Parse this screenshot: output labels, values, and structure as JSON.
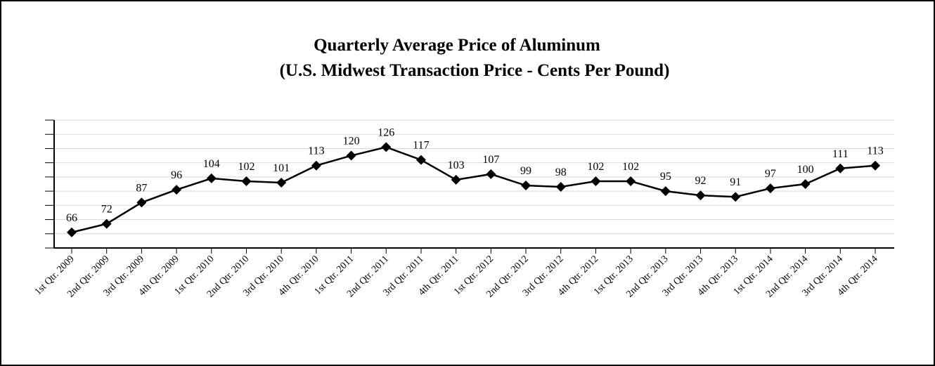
{
  "chart_data": {
    "type": "line",
    "title": "Quarterly Average Price of Aluminum",
    "subtitle": "(U.S. Midwest Transaction Price - Cents Per Pound)",
    "categories": [
      "1st Qtr. 2009",
      "2nd Qtr. 2009",
      "3rd Qtr. 2009",
      "4th Qtr. 2009",
      "1st Qtr. 2010",
      "2nd Qtr. 2010",
      "3rd Qtr. 2010",
      "4th Qtr. 2010",
      "1st Qtr. 2011",
      "2nd Qtr. 2011",
      "3rd Qtr. 2011",
      "4th Qtr. 2011",
      "1st Qtr. 2012",
      "2nd Qtr. 2012",
      "3rd Qtr. 2012",
      "4th Qtr. 2012",
      "1st Qtr. 2013",
      "2nd Qtr. 2013",
      "3rd Qtr. 2013",
      "4th Qtr. 2013",
      "1st Qtr. 2014",
      "2nd Qtr. 2014",
      "3rd Qtr. 2014",
      "4th Qtr. 2014"
    ],
    "values": [
      66,
      72,
      87,
      96,
      104,
      102,
      101,
      113,
      120,
      126,
      117,
      103,
      107,
      99,
      98,
      102,
      102,
      95,
      92,
      91,
      97,
      100,
      111,
      113
    ],
    "color": "#000000",
    "ylim": [
      55,
      145
    ],
    "yticks": [
      55,
      65,
      75,
      85,
      95,
      105,
      115,
      125,
      135,
      145
    ],
    "grid": true
  }
}
